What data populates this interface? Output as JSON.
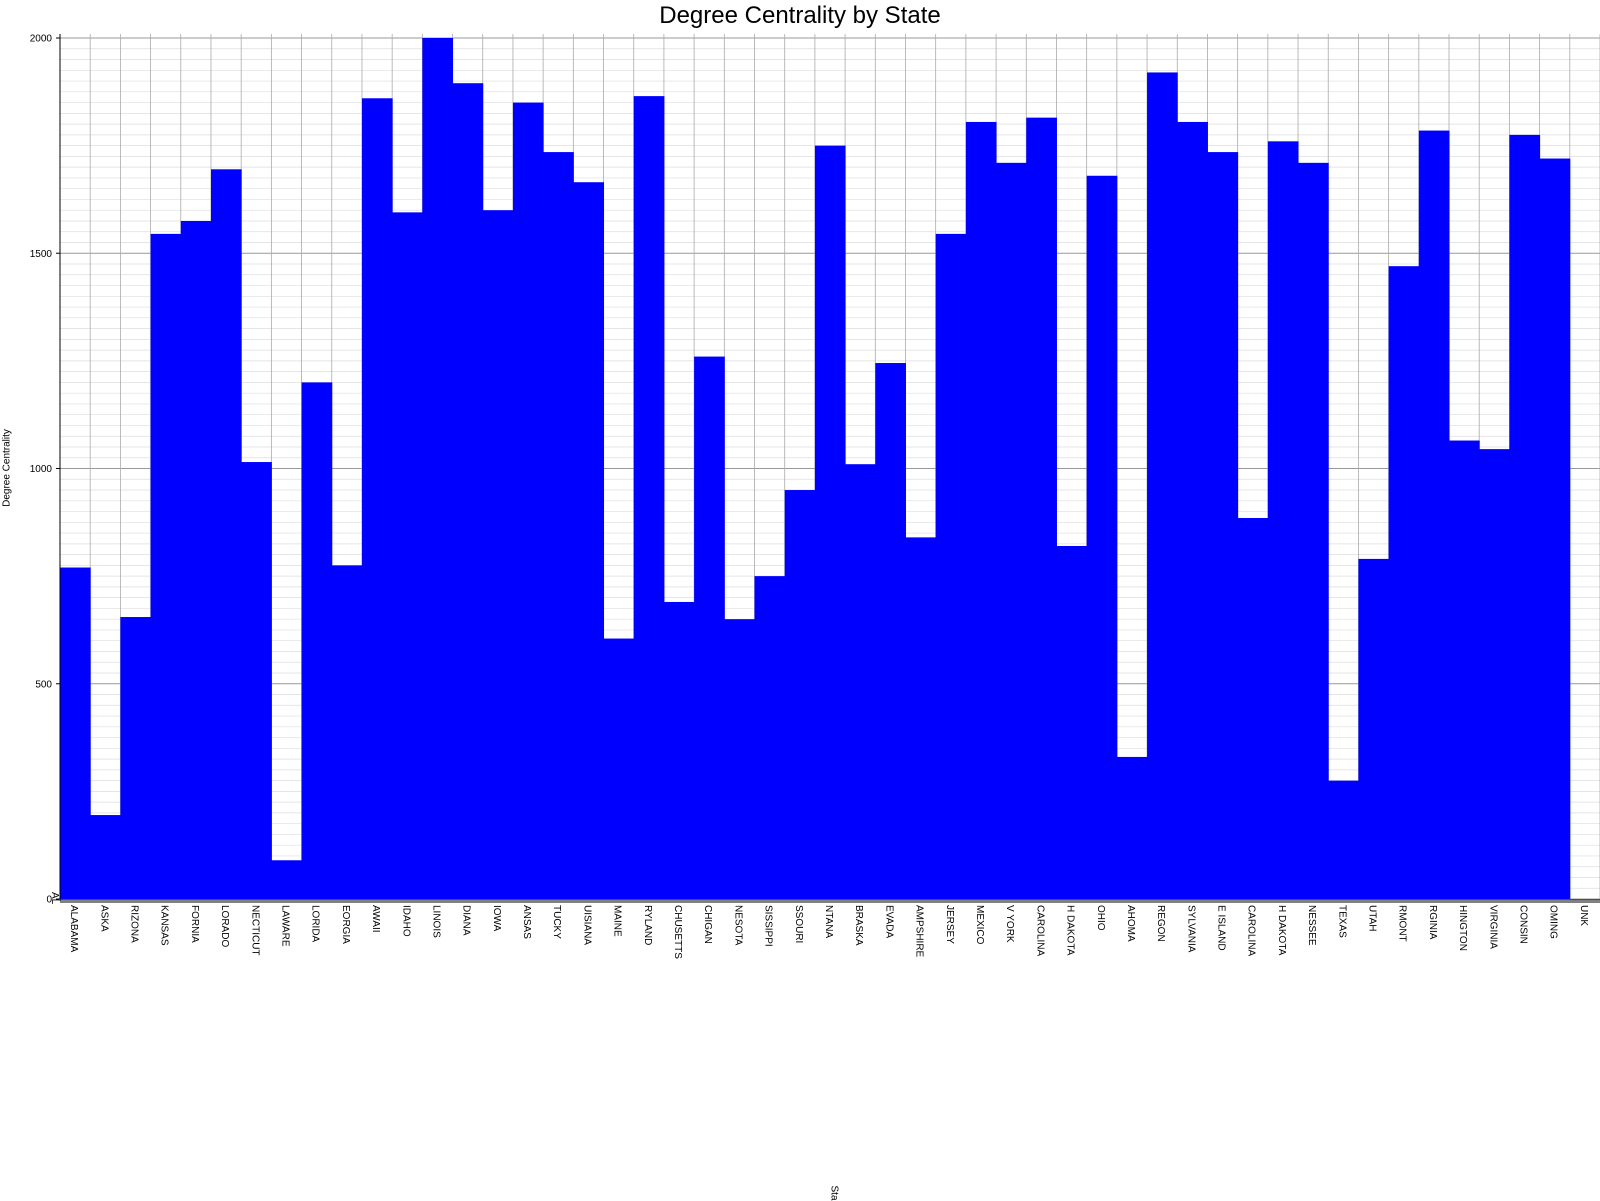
{
  "chart_data": {
    "type": "bar",
    "title": "Degree Centrality by State",
    "xlabel": "Sta",
    "ylabel": "Degree Centrality",
    "ylim": [
      0,
      2000
    ],
    "y_ticks": [
      0,
      500,
      1000,
      1500,
      2000
    ],
    "grid": true,
    "bar_color": "#0000ff",
    "categories": [
      "ALABAMA",
      "ALASKA",
      "ARIZONA",
      "ARKANSAS",
      "CALIFORNIA",
      "COLORADO",
      "CONNECTICUT",
      "DELAWARE",
      "FLORIDA",
      "GEORGIA",
      "HAWAII",
      "IDAHO",
      "ILLINOIS",
      "INDIANA",
      "IOWA",
      "KANSAS",
      "KENTUCKY",
      "LOUISIANA",
      "MAINE",
      "MARYLAND",
      "MASSACHUSETTS",
      "MICHIGAN",
      "MINNESOTA",
      "MISSISSIPPI",
      "MISSOURI",
      "MONTANA",
      "NEBRASKA",
      "NEVADA",
      "NEW HAMPSHIRE",
      "NEW JERSEY",
      "NEW MEXICO",
      "NEW YORK",
      "NORTH CAROLINA",
      "NORTH DAKOTA",
      "OHIO",
      "OKLAHOMA",
      "OREGON",
      "PENNSYLVANIA",
      "RHODE ISLAND",
      "SOUTH CAROLINA",
      "SOUTH DAKOTA",
      "TENNESSEE",
      "TEXAS",
      "UTAH",
      "VERMONT",
      "VIRGINIA",
      "WASHINGTON",
      "WEST VIRGINIA",
      "WISCONSIN",
      "WYOMING",
      "UNK"
    ],
    "tick_labels": [
      "ALABAMA",
      "ASKA",
      "RIZONA",
      "KANSAS",
      "FORNIA",
      "LORADO",
      "NECTICUT",
      "LAWARE",
      "LORIDA",
      "EORGIA",
      "AWAII",
      "IDAHO",
      "LINOIS",
      "DIANA",
      "IOWA",
      "ANSAS",
      "TUCKY",
      "UISIANA",
      "MAINE",
      "RYLAND",
      "CHUSETTS",
      "CHIGAN",
      "NESOTA",
      "SISSIPPI",
      "SSOURI",
      "NTANA",
      "BRASKA",
      "EVADA",
      "AMPSHIRE",
      "JERSEY",
      "MEXICO",
      "V YORK",
      "CAROLINA",
      "H DAKOTA",
      "OHIO",
      "AHOMA",
      "REGON",
      "SYLVANIA",
      "E ISLAND",
      "CAROLINA",
      "H DAKOTA",
      "NESSEE",
      "TEXAS",
      "UTAH",
      "RMONT",
      "RGINIA",
      "HINGTON",
      "VIRGINIA",
      "CONSIN",
      "OMING",
      "UNK"
    ],
    "values": [
      770,
      195,
      655,
      1545,
      1575,
      1695,
      1015,
      90,
      1200,
      775,
      1860,
      1595,
      2000,
      1895,
      1600,
      1850,
      1735,
      1665,
      605,
      1865,
      690,
      1260,
      650,
      750,
      950,
      1750,
      1010,
      1245,
      840,
      1545,
      1805,
      1710,
      1815,
      820,
      1680,
      330,
      1920,
      1805,
      1735,
      885,
      1760,
      1710,
      275,
      790,
      1470,
      1785,
      1065,
      1045,
      1775,
      1720,
      0
    ],
    "y_axis_corner_label": "AL"
  }
}
